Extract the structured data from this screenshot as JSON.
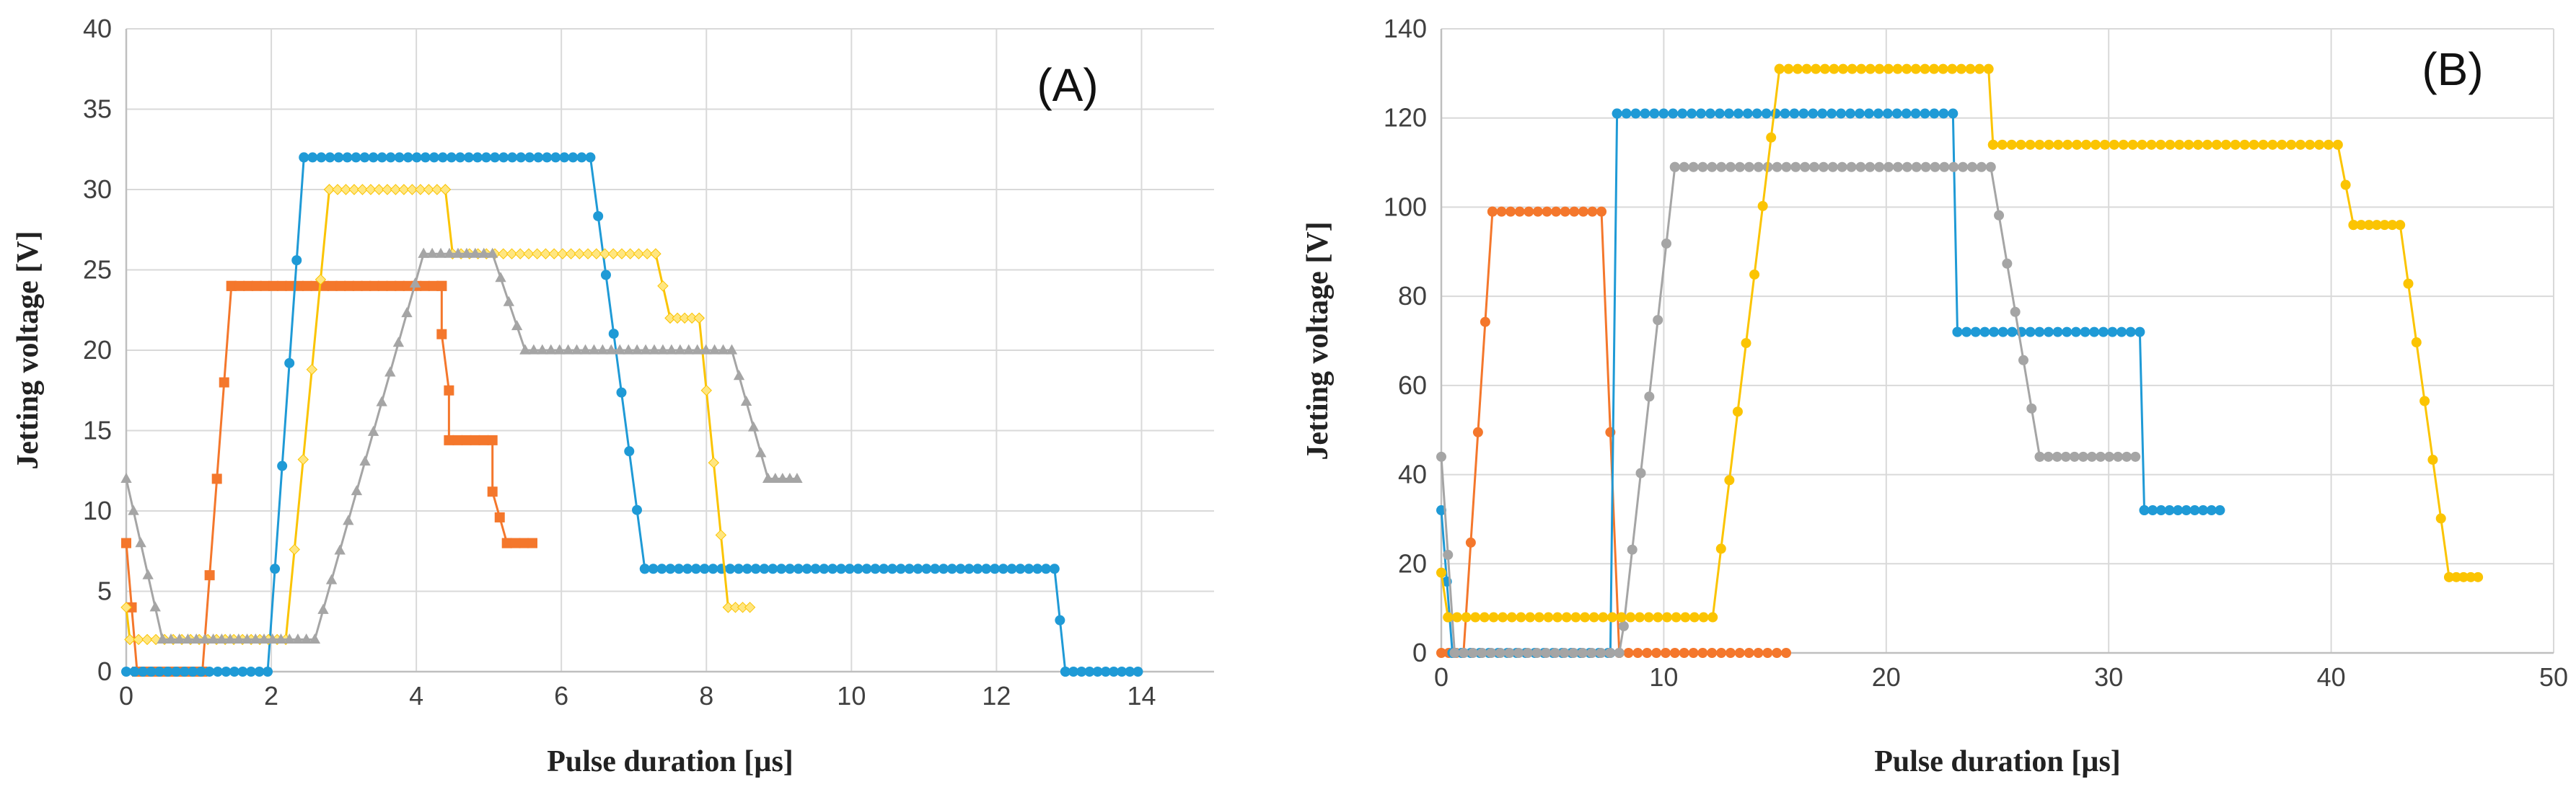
{
  "chart_data": [
    {
      "type": "line",
      "panel_label": "(A)",
      "xlabel": "Pulse duration [µs]",
      "ylabel": "Jetting voltage [V]",
      "xlim": [
        0,
        15
      ],
      "ylim": [
        0,
        40
      ],
      "xticks": [
        0,
        2,
        4,
        6,
        8,
        10,
        12,
        14
      ],
      "yticks": [
        0,
        5,
        10,
        15,
        20,
        25,
        30,
        35,
        40
      ],
      "grid": true,
      "series": [
        {
          "name": "orange",
          "color": "#f4772c",
          "marker": "square",
          "x": [
            0,
            0.15,
            0.15,
            1.05,
            1.45,
            1.45,
            4.35,
            4.35,
            4.35,
            4.45,
            4.45,
            5.05,
            5.05,
            5.25,
            5.25,
            5.6
          ],
          "y": [
            8,
            0,
            0,
            0,
            24,
            24,
            24,
            24,
            21,
            17.5,
            14.4,
            14.4,
            11.2,
            8,
            8,
            8
          ]
        },
        {
          "name": "blue",
          "color": "#1f9ad6",
          "marker": "circle",
          "x": [
            0,
            1.95,
            2.45,
            2.45,
            6.4,
            7.15,
            7.15,
            12.8,
            12.95,
            12.95,
            13.95
          ],
          "y": [
            0,
            0,
            32,
            32,
            32,
            6.4,
            6.4,
            6.4,
            0,
            0,
            0
          ]
        },
        {
          "name": "yellow",
          "color": "#fbc402",
          "marker": "diamond",
          "x": [
            0,
            0.05,
            0.05,
            2.2,
            2.8,
            2.8,
            4.4,
            4.4,
            4.5,
            4.5,
            7.3,
            7.3,
            7.5,
            7.5,
            7.9,
            7.9,
            8.3,
            8.3,
            8.6
          ],
          "y": [
            4,
            2,
            2,
            2,
            30,
            30,
            30,
            30,
            26,
            26,
            26,
            26,
            22,
            22,
            22,
            22,
            4,
            4,
            4
          ],
          "marker_color": "#ffe680"
        },
        {
          "name": "gray",
          "color": "#a5a5a5",
          "marker": "triangle",
          "x": [
            0,
            0.5,
            0.5,
            2.6,
            4.1,
            4.1,
            5.05,
            5.5,
            5.5,
            8.35,
            8.85,
            8.85,
            9.25
          ],
          "y": [
            12,
            2,
            2,
            2,
            26,
            26,
            26,
            20,
            20,
            20,
            12,
            12,
            12
          ]
        }
      ]
    },
    {
      "type": "line",
      "panel_label": "(B)",
      "xlabel": "Pulse duration [µs]",
      "ylabel": "Jetting voltage [V]",
      "xlim": [
        0,
        50
      ],
      "ylim": [
        0,
        140
      ],
      "xticks": [
        0,
        10,
        20,
        30,
        40,
        50
      ],
      "yticks": [
        0,
        20,
        40,
        60,
        80,
        100,
        120,
        140
      ],
      "grid": true,
      "series": [
        {
          "name": "orange",
          "color": "#f4772c",
          "marker": "circle",
          "x": [
            0,
            1.0,
            2.3,
            2.3,
            7.2,
            8.0,
            8.0,
            15.5
          ],
          "y": [
            0,
            0,
            99,
            99,
            99,
            0,
            0,
            0
          ]
        },
        {
          "name": "blue",
          "color": "#1f9ad6",
          "marker": "circle",
          "x": [
            0,
            0.5,
            0.5,
            7.5,
            7.6,
            7.9,
            7.9,
            23.0,
            23.2,
            23.2,
            31.4,
            31.6,
            31.6,
            35.0
          ],
          "y": [
            32,
            0,
            0,
            0,
            0,
            121,
            121,
            121,
            72,
            72,
            72,
            32,
            32,
            32
          ]
        },
        {
          "name": "gray",
          "color": "#a5a5a5",
          "marker": "circle",
          "x": [
            0,
            0.6,
            0.6,
            8.0,
            8.2,
            10.5,
            10.5,
            24.7,
            26.9,
            26.9,
            31.2
          ],
          "y": [
            44,
            0,
            0,
            0,
            6,
            109,
            109,
            109,
            44,
            44,
            44
          ]
        },
        {
          "name": "yellow",
          "color": "#fbc402",
          "marker": "circle",
          "x": [
            0,
            0.3,
            0.3,
            12.2,
            15.2,
            15.2,
            24.6,
            24.8,
            24.8,
            40.3,
            41.0,
            41.0,
            43.1,
            45.3,
            45.3,
            46.6
          ],
          "y": [
            18,
            8,
            8,
            8,
            131,
            131,
            131,
            114,
            114,
            114,
            96,
            96,
            96,
            17,
            17,
            17
          ]
        }
      ]
    }
  ]
}
